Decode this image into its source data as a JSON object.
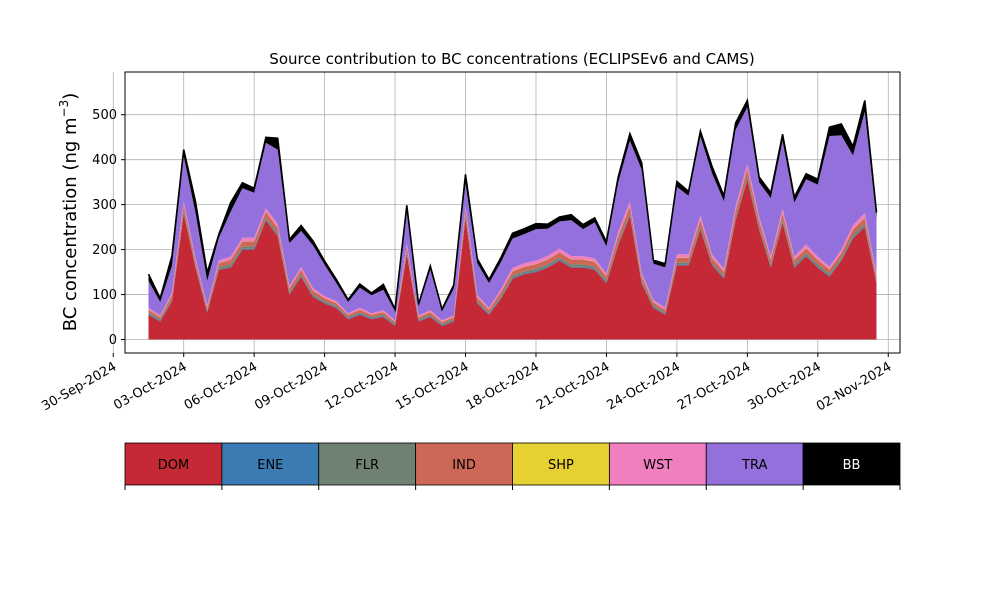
{
  "chart_data": {
    "type": "area",
    "stacked": true,
    "title": "Source contribution to BC concentrations (ECLIPSEv6 and CAMS)",
    "xlabel": "",
    "ylabel": "BC concentration (ng m⁻³)",
    "ylabel_base": "BC concentration (ng m",
    "ylabel_sup": "−3",
    "ylabel_close": ")",
    "grid": true,
    "xlim": [
      "2024-09-30T12:00",
      "2024-11-02T12:00"
    ],
    "ylim": [
      -30,
      595
    ],
    "yticks": [
      0,
      100,
      200,
      300,
      400,
      500
    ],
    "xticks": [
      {
        "date": "2024-09-30",
        "label": "30-Sep-2024"
      },
      {
        "date": "2024-10-03",
        "label": "03-Oct-2024"
      },
      {
        "date": "2024-10-06",
        "label": "06-Oct-2024"
      },
      {
        "date": "2024-10-09",
        "label": "09-Oct-2024"
      },
      {
        "date": "2024-10-12",
        "label": "12-Oct-2024"
      },
      {
        "date": "2024-10-15",
        "label": "15-Oct-2024"
      },
      {
        "date": "2024-10-18",
        "label": "18-Oct-2024"
      },
      {
        "date": "2024-10-21",
        "label": "21-Oct-2024"
      },
      {
        "date": "2024-10-24",
        "label": "24-Oct-2024"
      },
      {
        "date": "2024-10-27",
        "label": "27-Oct-2024"
      },
      {
        "date": "2024-10-30",
        "label": "30-Oct-2024"
      },
      {
        "date": "2024-11-02",
        "label": "02-Nov-2024"
      }
    ],
    "x": [
      "2024-10-01T12:00",
      "2024-10-02T00:00",
      "2024-10-02T12:00",
      "2024-10-03T00:00",
      "2024-10-03T12:00",
      "2024-10-04T00:00",
      "2024-10-04T12:00",
      "2024-10-05T00:00",
      "2024-10-05T12:00",
      "2024-10-06T00:00",
      "2024-10-06T12:00",
      "2024-10-07T00:00",
      "2024-10-07T12:00",
      "2024-10-08T00:00",
      "2024-10-08T12:00",
      "2024-10-09T00:00",
      "2024-10-09T12:00",
      "2024-10-10T00:00",
      "2024-10-10T12:00",
      "2024-10-11T00:00",
      "2024-10-11T12:00",
      "2024-10-12T00:00",
      "2024-10-12T12:00",
      "2024-10-13T00:00",
      "2024-10-13T12:00",
      "2024-10-14T00:00",
      "2024-10-14T12:00",
      "2024-10-15T00:00",
      "2024-10-15T12:00",
      "2024-10-16T00:00",
      "2024-10-16T12:00",
      "2024-10-17T00:00",
      "2024-10-17T12:00",
      "2024-10-18T00:00",
      "2024-10-18T12:00",
      "2024-10-19T00:00",
      "2024-10-19T12:00",
      "2024-10-20T00:00",
      "2024-10-20T12:00",
      "2024-10-21T00:00",
      "2024-10-21T12:00",
      "2024-10-22T00:00",
      "2024-10-22T12:00",
      "2024-10-23T00:00",
      "2024-10-23T12:00",
      "2024-10-24T00:00",
      "2024-10-24T12:00",
      "2024-10-25T00:00",
      "2024-10-25T12:00",
      "2024-10-26T00:00",
      "2024-10-26T12:00",
      "2024-10-27T00:00",
      "2024-10-27T12:00",
      "2024-10-28T00:00",
      "2024-10-28T12:00",
      "2024-10-29T00:00",
      "2024-10-29T12:00",
      "2024-10-30T00:00",
      "2024-10-30T12:00",
      "2024-10-31T00:00",
      "2024-10-31T12:00",
      "2024-11-01T00:00",
      "2024-11-01T12:00"
    ],
    "series": [
      {
        "name": "DOM",
        "color": "#c62936",
        "values": [
          55,
          40,
          85,
          280,
          160,
          60,
          155,
          160,
          200,
          200,
          265,
          230,
          100,
          140,
          95,
          80,
          70,
          45,
          55,
          45,
          50,
          30,
          190,
          40,
          50,
          30,
          40,
          270,
          80,
          55,
          90,
          135,
          145,
          150,
          160,
          175,
          160,
          160,
          155,
          125,
          210,
          275,
          125,
          70,
          55,
          165,
          165,
          245,
          165,
          135,
          265,
          355,
          245,
          160,
          260,
          160,
          185,
          160,
          140,
          175,
          225,
          250,
          125
        ]
      },
      {
        "name": "ENE",
        "color": "#3a7bb3",
        "values": [
          2,
          2,
          2,
          2,
          2,
          2,
          2,
          2,
          2,
          2,
          2,
          2,
          2,
          2,
          2,
          2,
          2,
          2,
          2,
          2,
          2,
          2,
          2,
          2,
          2,
          2,
          2,
          2,
          2,
          2,
          2,
          2,
          2,
          2,
          2,
          2,
          2,
          2,
          2,
          2,
          2,
          2,
          2,
          2,
          2,
          2,
          2,
          2,
          2,
          2,
          2,
          2,
          2,
          2,
          2,
          2,
          2,
          2,
          2,
          2,
          2,
          2,
          2
        ]
      },
      {
        "name": "FLR",
        "color": "#6f8272",
        "values": [
          3,
          3,
          4,
          5,
          4,
          3,
          4,
          5,
          5,
          5,
          5,
          5,
          4,
          4,
          4,
          3,
          3,
          3,
          3,
          3,
          3,
          3,
          4,
          3,
          3,
          3,
          3,
          5,
          4,
          3,
          4,
          5,
          5,
          5,
          5,
          5,
          5,
          5,
          5,
          5,
          6,
          6,
          5,
          4,
          3,
          5,
          5,
          6,
          5,
          5,
          6,
          7,
          6,
          5,
          6,
          5,
          5,
          5,
          5,
          5,
          6,
          6,
          5
        ]
      },
      {
        "name": "IND",
        "color": "#cd6757",
        "values": [
          6,
          5,
          8,
          12,
          9,
          6,
          9,
          10,
          11,
          11,
          12,
          12,
          8,
          9,
          8,
          7,
          6,
          5,
          6,
          5,
          6,
          4,
          10,
          5,
          6,
          4,
          5,
          12,
          8,
          6,
          9,
          10,
          10,
          11,
          11,
          12,
          11,
          11,
          11,
          9,
          12,
          14,
          9,
          7,
          6,
          10,
          10,
          13,
          10,
          9,
          13,
          15,
          12,
          10,
          13,
          10,
          11,
          10,
          9,
          10,
          12,
          13,
          9
        ]
      },
      {
        "name": "SHP",
        "color": "#e6d032",
        "values": [
          0.5,
          0.5,
          0.5,
          0.5,
          0.5,
          0.5,
          0.5,
          0.5,
          0.5,
          0.5,
          0.5,
          0.5,
          0.5,
          0.5,
          0.5,
          0.5,
          0.5,
          0.5,
          0.5,
          0.5,
          0.5,
          0.5,
          0.5,
          0.5,
          0.5,
          0.5,
          0.5,
          0.5,
          0.5,
          0.5,
          0.5,
          0.5,
          0.5,
          0.5,
          0.5,
          0.5,
          0.5,
          0.5,
          0.5,
          0.5,
          0.5,
          0.5,
          0.5,
          0.5,
          0.5,
          0.5,
          0.5,
          0.5,
          0.5,
          0.5,
          0.5,
          0.5,
          0.5,
          0.5,
          0.5,
          0.5,
          0.5,
          0.5,
          0.5,
          0.5,
          0.5,
          0.5,
          0.5
        ]
      },
      {
        "name": "WST",
        "color": "#f07fbf",
        "values": [
          4,
          3,
          5,
          8,
          6,
          4,
          6,
          7,
          8,
          8,
          8,
          8,
          5,
          6,
          5,
          4,
          4,
          3,
          4,
          3,
          4,
          3,
          7,
          3,
          4,
          3,
          3,
          8,
          5,
          4,
          6,
          7,
          7,
          7,
          8,
          8,
          7,
          7,
          7,
          6,
          9,
          10,
          6,
          5,
          4,
          7,
          7,
          10,
          7,
          6,
          10,
          12,
          9,
          7,
          10,
          7,
          8,
          7,
          6,
          7,
          9,
          10,
          6
        ]
      },
      {
        "name": "TRA",
        "color": "#9370db",
        "values": [
          60,
          30,
          60,
          100,
          100,
          55,
          50,
          100,
          110,
          100,
          145,
          165,
          95,
          80,
          95,
          70,
          40,
          25,
          45,
          40,
          45,
          20,
          70,
          20,
          90,
          20,
          60,
          50,
          70,
          55,
          60,
          65,
          65,
          70,
          60,
          60,
          80,
          60,
          80,
          60,
          110,
          135,
          230,
          80,
          90,
          150,
          130,
          175,
          180,
          150,
          170,
          125,
          75,
          130,
          150,
          120,
          145,
          160,
          290,
          255,
          155,
          225,
          120
        ]
      },
      {
        "name": "BB",
        "color": "#000000",
        "values": [
          15,
          8,
          22,
          15,
          25,
          18,
          8,
          20,
          12,
          10,
          12,
          25,
          8,
          12,
          10,
          8,
          8,
          5,
          8,
          5,
          12,
          5,
          15,
          5,
          8,
          5,
          8,
          20,
          10,
          8,
          10,
          12,
          12,
          12,
          10,
          10,
          12,
          10,
          10,
          10,
          12,
          15,
          15,
          8,
          8,
          12,
          10,
          12,
          15,
          12,
          15,
          15,
          12,
          12,
          15,
          12,
          12,
          12,
          20,
          25,
          20,
          25,
          15
        ]
      }
    ]
  },
  "legend": [
    {
      "label": "DOM",
      "color": "#c62936",
      "text_color": "#000000"
    },
    {
      "label": "ENE",
      "color": "#3a7bb3",
      "text_color": "#000000"
    },
    {
      "label": "FLR",
      "color": "#6f8272",
      "text_color": "#000000"
    },
    {
      "label": "IND",
      "color": "#cd6757",
      "text_color": "#000000"
    },
    {
      "label": "SHP",
      "color": "#e6d032",
      "text_color": "#000000"
    },
    {
      "label": "WST",
      "color": "#f07fbf",
      "text_color": "#000000"
    },
    {
      "label": "TRA",
      "color": "#9370db",
      "text_color": "#000000"
    },
    {
      "label": "BB",
      "color": "#000000",
      "text_color": "#ffffff"
    }
  ]
}
